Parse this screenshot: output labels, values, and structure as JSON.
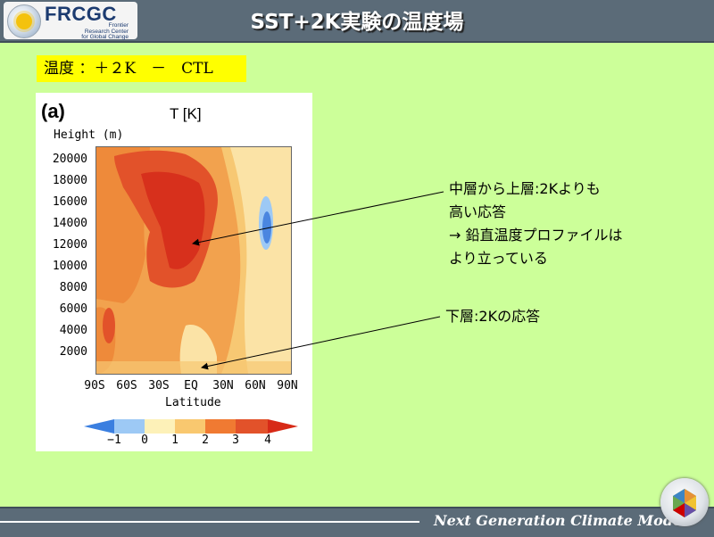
{
  "header": {
    "logo_text": "FRCGC",
    "logo_sub": [
      "Frontier",
      "Research Center",
      "for Global Change"
    ],
    "title": "SST+2K実験の温度場"
  },
  "subtitle": "温度 ：＋２K　－　CTL",
  "figure": {
    "panel_letter": "(a)",
    "title": "T [K]",
    "y_label": "Height (m)",
    "x_label": "Latitude"
  },
  "chart_data": {
    "type": "contour",
    "title": "T [K]",
    "xlabel": "Latitude",
    "ylabel": "Height (m)",
    "x_ticks": [
      "90S",
      "60S",
      "30S",
      "EQ",
      "30N",
      "60N",
      "90N"
    ],
    "y_ticks": [
      20000,
      18000,
      16000,
      14000,
      12000,
      10000,
      8000,
      6000,
      4000,
      2000
    ],
    "ylim": [
      0,
      20000
    ],
    "colorbar": {
      "labels": [
        "−1",
        "0",
        "1",
        "2",
        "3",
        "4"
      ],
      "colors": [
        "#3b7fe0",
        "#9dc9f5",
        "#fdf1b8",
        "#f9c86f",
        "#f07a32",
        "#d72a17"
      ]
    }
  },
  "annotations": {
    "upper": [
      "中層から上層:2Kよりも",
      "高い応答",
      "→ 鉛直温度プロファイルは",
      "より立っている"
    ],
    "lower": [
      "下層:2Kの応答"
    ]
  },
  "footer": {
    "text": "Next Generation Climate Model"
  }
}
